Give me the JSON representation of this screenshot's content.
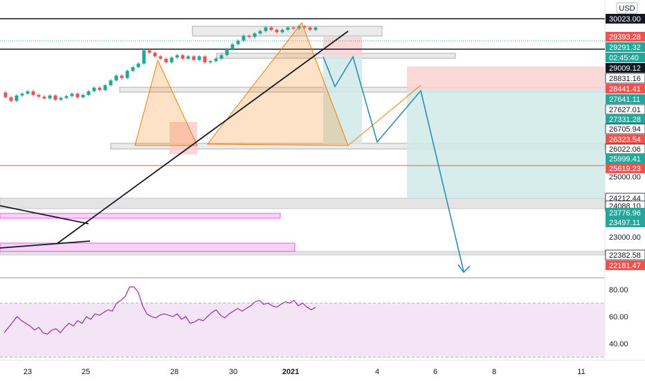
{
  "currency": "USD",
  "colors": {
    "up": "#26a69a",
    "down": "#ef5350",
    "accent": "#2196f3",
    "rsi": "#9c27b0",
    "projection": "#2e8bb3",
    "pattern": "#f57c00"
  },
  "chart_data": {
    "type": "candlestick",
    "symbol_currency": "USD",
    "x_tick_labels": [
      "23",
      "25",
      "28",
      "30",
      "2021",
      "4",
      "6",
      "8",
      "11"
    ],
    "price_axis_ticks": [
      "25000.00",
      "23000.00"
    ],
    "price_labels": [
      {
        "text": "30023.00",
        "style": "dark"
      },
      {
        "text": "29393.28",
        "style": "red"
      },
      {
        "text": "29291.32",
        "style": "green"
      },
      {
        "text": "02:45:40",
        "style": "green"
      },
      {
        "text": "29009.12",
        "style": "dark"
      },
      {
        "text": "28831.16",
        "style": "gray"
      },
      {
        "text": "28441.41",
        "style": "red"
      },
      {
        "text": "27641.11",
        "style": "green"
      },
      {
        "text": "27627.01",
        "style": "gray"
      },
      {
        "text": "27331.28",
        "style": "green"
      },
      {
        "text": "26705.94",
        "style": "gray"
      },
      {
        "text": "26323.54",
        "style": "red"
      },
      {
        "text": "26022.06",
        "style": "gray"
      },
      {
        "text": "25999.41",
        "style": "green"
      },
      {
        "text": "25619.23",
        "style": "red"
      },
      {
        "text": "24212.44",
        "style": "gray"
      },
      {
        "text": "24088.10",
        "style": "gray"
      },
      {
        "text": "23776.96",
        "style": "green"
      },
      {
        "text": "23497.11",
        "style": "green"
      },
      {
        "text": "22382.58",
        "style": "gray"
      },
      {
        "text": "22181.47",
        "style": "red"
      }
    ],
    "projection_path": [
      {
        "x": "Jan 2",
        "y": 29000
      },
      {
        "x": "Jan 3",
        "y": 28100
      },
      {
        "x": "Jan 3",
        "y": 28900
      },
      {
        "x": "Jan 4",
        "y": 26300
      },
      {
        "x": "Jan 5",
        "y": 28450
      },
      {
        "x": "Jan 7",
        "y": 22200
      }
    ],
    "rsi": {
      "ticks": [
        "80.00",
        "60.00",
        "40.00"
      ],
      "upper": 70,
      "lower": 30,
      "ylim": [
        25,
        90
      ],
      "values": [
        48,
        52,
        56,
        60,
        57,
        55,
        53,
        50,
        52,
        48,
        47,
        50,
        51,
        48,
        52,
        55,
        53,
        57,
        55,
        60,
        58,
        62,
        61,
        63,
        65,
        64,
        70,
        72,
        75,
        82,
        82,
        78,
        68,
        62,
        60,
        59,
        61,
        62,
        61,
        60,
        62,
        58,
        60,
        55,
        56,
        58,
        57,
        60,
        63,
        65,
        61,
        59,
        62,
        64,
        66,
        64,
        66,
        68,
        71,
        72,
        69,
        70,
        68,
        67,
        69,
        71,
        70,
        72,
        68,
        70,
        67,
        65,
        67
      ]
    }
  }
}
